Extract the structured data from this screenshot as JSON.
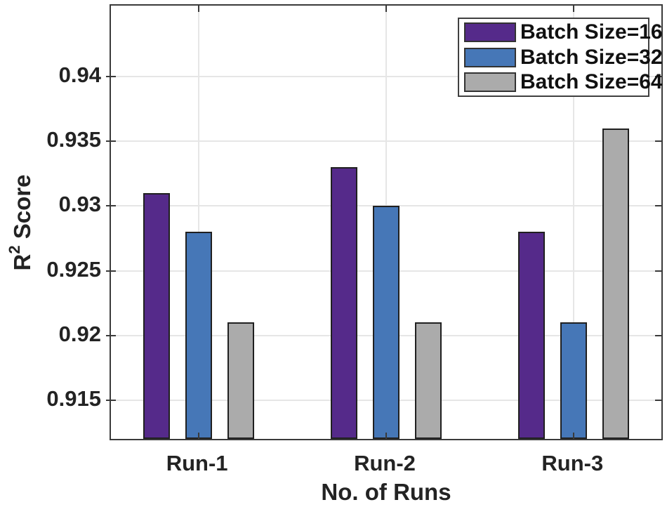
{
  "chart_data": {
    "type": "bar",
    "title": "",
    "xlabel": "No. of Runs",
    "ylabel": {
      "base": "R",
      "sup": "2",
      "rest": " Score"
    },
    "categories": [
      "Run-1",
      "Run-2",
      "Run-3"
    ],
    "series": [
      {
        "name": "Batch Size=16",
        "color": "#552a8a",
        "values": [
          0.931,
          0.933,
          0.928
        ]
      },
      {
        "name": "Batch Size=32",
        "color": "#4677b7",
        "values": [
          0.928,
          0.93,
          0.921
        ]
      },
      {
        "name": "Batch Size=64",
        "color": "#ababab",
        "values": [
          0.921,
          0.921,
          0.936
        ]
      }
    ],
    "yticks": [
      0.915,
      0.92,
      0.925,
      0.93,
      0.935,
      0.94
    ],
    "ytick_labels": [
      "0.915",
      "0.92",
      "0.925",
      "0.93",
      "0.935",
      "0.94"
    ],
    "ylim": [
      0.912,
      0.9455
    ],
    "grid": true,
    "legend_position": "top-right",
    "colors": {
      "bar_edge": "#202020",
      "axis_box": "#3a3a3a",
      "grid": "#e6e6e6",
      "text": "#232323",
      "background": "#ffffff"
    }
  }
}
